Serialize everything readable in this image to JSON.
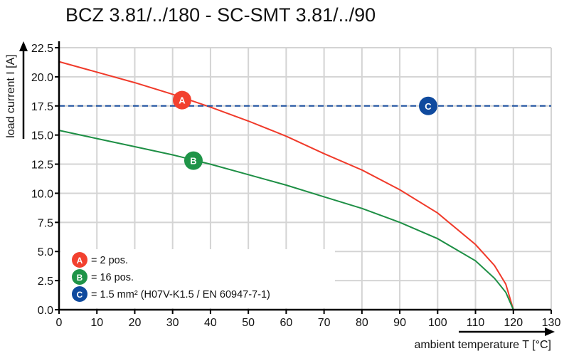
{
  "chart_data": {
    "type": "line",
    "title": "BCZ 3.81/../180 - SC-SMT 3.81/../90",
    "xlabel": "ambient temperature T [°C]",
    "ylabel": "load current I [A]",
    "xlim": [
      0,
      130
    ],
    "ylim": [
      0,
      22.5
    ],
    "xticks": [
      "0",
      "10",
      "20",
      "30",
      "40",
      "50",
      "60",
      "70",
      "80",
      "90",
      "100",
      "110",
      "120",
      "130"
    ],
    "yticks": [
      "0.0",
      "2.5",
      "5.0",
      "7.5",
      "10.0",
      "12.5",
      "15.0",
      "17.5",
      "20.0",
      "22.5"
    ],
    "grid": true,
    "series": [
      {
        "name": "A",
        "color": "#f03a2a",
        "x": [
          0,
          10,
          20,
          30,
          40,
          50,
          60,
          70,
          80,
          90,
          100,
          110,
          115,
          118,
          120
        ],
        "y": [
          21.3,
          20.4,
          19.5,
          18.5,
          17.4,
          16.2,
          14.9,
          13.4,
          12.0,
          10.3,
          8.3,
          5.6,
          3.8,
          2.2,
          0
        ]
      },
      {
        "name": "B",
        "color": "#1e8f45",
        "x": [
          0,
          10,
          20,
          30,
          40,
          50,
          60,
          70,
          80,
          90,
          100,
          110,
          115,
          118,
          120
        ],
        "y": [
          15.4,
          14.7,
          14.0,
          13.3,
          12.5,
          11.6,
          10.7,
          9.7,
          8.7,
          7.5,
          6.1,
          4.2,
          2.7,
          1.5,
          0
        ]
      },
      {
        "name": "C",
        "color": "#1a4fa0",
        "dashed": true,
        "x": [
          0,
          130
        ],
        "y": [
          17.5,
          17.5
        ]
      }
    ],
    "markers": [
      {
        "label": "A",
        "x": 32.5,
        "y": 18.0,
        "color": "#f2412f"
      },
      {
        "label": "B",
        "x": 35.5,
        "y": 12.8,
        "color": "#1f9448"
      },
      {
        "label": "C",
        "x": 97.5,
        "y": 17.5,
        "color": "#0f4a9e"
      }
    ],
    "legend": {
      "placement": "bottom-left",
      "entries": [
        {
          "badge": "A",
          "text": "= 2 pos.",
          "color": "#f2412f"
        },
        {
          "badge": "B",
          "text": "= 16 pos.",
          "color": "#1f9448"
        },
        {
          "badge": "C",
          "text": "= 1.5 mm² (H07V-K1.5 / EN 60947-7-1)",
          "color": "#0f4a9e"
        }
      ]
    }
  }
}
